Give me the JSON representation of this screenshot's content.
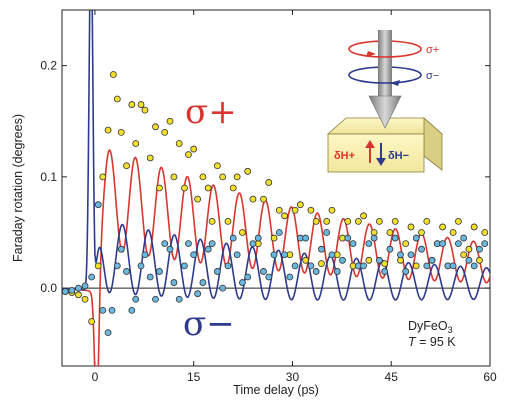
{
  "chart_data": {
    "type": "line",
    "title": "",
    "xlabel": "Time delay (ps)",
    "ylabel": "Faraday rotation (degrees)",
    "xlim": [
      -5,
      60
    ],
    "ylim": [
      -0.07,
      0.25
    ],
    "xticks": [
      0,
      15,
      30,
      45,
      60
    ],
    "xtick_labels": [
      "0",
      "15",
      "30",
      "45",
      "60"
    ],
    "yticks": [
      0.0,
      0.1,
      0.2
    ],
    "ytick_labels": [
      "0.0",
      "0.1",
      "0.2"
    ],
    "grid": false,
    "legend": "none",
    "series": [
      {
        "name": "σ+",
        "color": "#d9362e",
        "marker_color": "#f2df2c",
        "fit": {
          "offset_amp": 0.085,
          "offset_tau": 45,
          "osc_amp": 0.048,
          "osc_tau": 60,
          "period": 3.95,
          "phase_deg": 0
        },
        "x": [
          -4.5,
          -3.5,
          -2.5,
          -1.5,
          -0.5,
          0.5,
          1.2,
          2.0,
          2.8,
          3.4,
          4.0,
          4.8,
          5.6,
          6.2,
          7.0,
          7.6,
          8.4,
          9.2,
          9.8,
          10.6,
          11.4,
          12.0,
          12.8,
          13.6,
          14.2,
          15.0,
          15.6,
          16.4,
          17.2,
          17.8,
          18.6,
          19.4,
          20.2,
          21.0,
          21.6,
          22.4,
          23.2,
          24.0,
          24.8,
          25.6,
          26.4,
          27.2,
          28.0,
          28.8,
          29.6,
          30.4,
          31.2,
          32.0,
          32.8,
          33.6,
          34.4,
          35.2,
          36.0,
          36.8,
          37.6,
          38.4,
          39.2,
          40.0,
          40.8,
          41.6,
          42.4,
          43.2,
          44.0,
          44.8,
          45.6,
          46.4,
          47.2,
          48.0,
          48.8,
          49.6,
          50.4,
          51.2,
          52.0,
          52.8,
          53.6,
          54.4,
          55.2,
          56.0,
          56.8,
          57.6,
          58.4,
          59.2
        ],
        "y": [
          -0.003,
          -0.004,
          -0.006,
          -0.01,
          -0.03,
          0.02,
          0.1,
          0.142,
          0.192,
          0.17,
          0.14,
          0.11,
          0.165,
          0.13,
          0.165,
          0.16,
          0.117,
          0.145,
          0.09,
          0.14,
          0.15,
          0.1,
          0.13,
          0.09,
          0.12,
          0.125,
          0.08,
          0.1,
          0.09,
          0.06,
          0.11,
          0.1,
          0.06,
          0.09,
          0.1,
          0.05,
          0.105,
          0.08,
          0.04,
          0.08,
          0.095,
          0.045,
          0.07,
          0.065,
          0.03,
          0.07,
          0.075,
          0.025,
          0.07,
          0.06,
          0.022,
          0.06,
          0.07,
          0.03,
          0.045,
          0.06,
          0.02,
          0.06,
          0.065,
          0.025,
          0.05,
          0.06,
          0.022,
          0.05,
          0.06,
          0.025,
          0.04,
          0.055,
          0.02,
          0.05,
          0.06,
          0.025,
          0.04,
          0.055,
          0.02,
          0.05,
          0.06,
          0.03,
          0.035,
          0.055,
          0.025,
          0.05
        ]
      },
      {
        "name": "σ−",
        "color": "#2e3b8c",
        "marker_color": "#6ab8e0",
        "fit": {
          "offset_amp": 0.03,
          "offset_tau": 30,
          "osc_amp": 0.033,
          "osc_tau": 70,
          "period": 3.95,
          "phase_deg": 180
        },
        "x": [
          -4.5,
          -3.5,
          -2.5,
          -1.5,
          -0.5,
          0.5,
          1.2,
          2.0,
          2.6,
          3.4,
          4.0,
          4.8,
          5.6,
          6.2,
          7.0,
          7.6,
          8.4,
          9.2,
          9.8,
          10.6,
          11.4,
          12.0,
          12.8,
          13.6,
          14.2,
          15.0,
          15.6,
          16.4,
          17.2,
          17.8,
          18.6,
          19.4,
          20.2,
          21.0,
          21.6,
          22.4,
          23.2,
          24.0,
          24.8,
          25.6,
          26.4,
          27.2,
          28.0,
          28.8,
          29.6,
          30.4,
          31.2,
          32.0,
          32.8,
          33.6,
          34.4,
          35.2,
          36.0,
          36.8,
          37.6,
          38.4,
          39.2,
          40.0,
          40.8,
          41.6,
          42.4,
          43.2,
          44.0,
          44.8,
          45.6,
          46.4,
          47.2,
          48.0,
          48.8,
          49.6,
          50.4,
          51.2,
          52.0,
          52.8,
          53.6,
          54.4,
          55.2,
          56.0,
          56.8,
          57.6,
          58.4,
          59.2
        ],
        "y": [
          -0.003,
          -0.002,
          0.0,
          0.002,
          0.01,
          0.075,
          -0.02,
          -0.04,
          -0.02,
          0.02,
          0.035,
          0.015,
          -0.02,
          -0.01,
          0.02,
          0.03,
          0.01,
          -0.01,
          0.015,
          0.04,
          0.035,
          0.005,
          -0.01,
          0.02,
          0.04,
          0.03,
          -0.005,
          0.005,
          0.035,
          0.04,
          0.015,
          0.0,
          0.02,
          0.045,
          0.03,
          0.005,
          0.01,
          0.04,
          0.045,
          0.015,
          0.01,
          0.03,
          0.05,
          0.03,
          0.01,
          0.02,
          0.045,
          0.045,
          0.02,
          0.015,
          0.035,
          0.05,
          0.03,
          0.015,
          0.025,
          0.045,
          0.04,
          0.02,
          0.02,
          0.04,
          0.045,
          0.025,
          0.015,
          0.035,
          0.045,
          0.03,
          0.015,
          0.03,
          0.045,
          0.035,
          0.02,
          0.025,
          0.04,
          0.04,
          0.02,
          0.02,
          0.04,
          0.045,
          0.025,
          0.02,
          0.035,
          0.04
        ]
      }
    ],
    "annotations": {
      "sigma_plus_label": "σ+",
      "sigma_minus_label": "σ−",
      "inset_sigma_plus": "σ+",
      "inset_sigma_minus": "σ−",
      "inset_h_plus": "δH+",
      "inset_h_minus": "δH−",
      "sample": "DyFeO",
      "sample_subscript": "3",
      "temperature_symbol": "T",
      "temperature_value": " = 95 K"
    }
  }
}
